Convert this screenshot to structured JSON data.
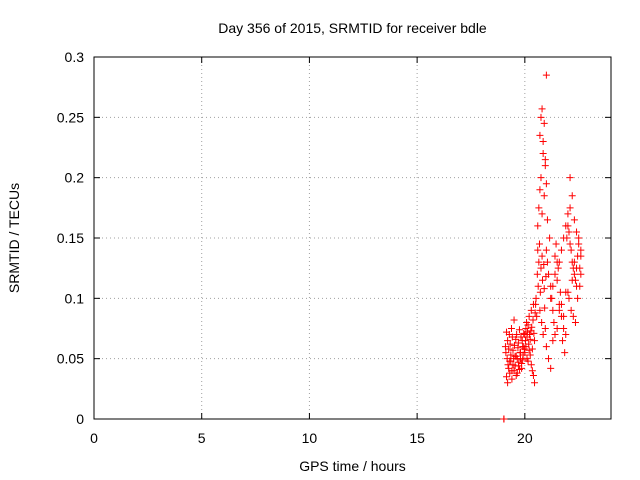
{
  "chart_data": {
    "type": "scatter",
    "title": "Day 356 of 2015, SRMTID for receiver bdle",
    "xlabel": "GPS time / hours",
    "ylabel": "SRMTID / TECUs",
    "xlim": [
      0,
      24
    ],
    "ylim": [
      0,
      0.3
    ],
    "xticks": [
      0,
      5,
      10,
      15,
      20
    ],
    "xtick_labels": [
      "0",
      "5",
      "10",
      "15",
      "20"
    ],
    "yticks": [
      0,
      0.05,
      0.1,
      0.15,
      0.2,
      0.25,
      0.3
    ],
    "ytick_labels": [
      "0",
      "0.05",
      "0.1",
      "0.15",
      "0.2",
      "0.25",
      "0.3"
    ],
    "grid": true,
    "marker": "+",
    "series": [
      {
        "name": "SRMTID",
        "color": "#ff0000",
        "x": [
          19.03,
          19.03,
          19.03,
          19.03,
          19.1,
          19.12,
          19.15,
          19.18,
          19.2,
          19.22,
          19.25,
          19.28,
          19.3,
          19.32,
          19.35,
          19.38,
          19.4,
          19.42,
          19.45,
          19.48,
          19.5,
          19.52,
          19.55,
          19.58,
          19.6,
          19.62,
          19.65,
          19.68,
          19.7,
          19.72,
          19.75,
          19.78,
          19.8,
          19.82,
          19.85,
          19.88,
          19.9,
          19.92,
          19.95,
          19.98,
          19.15,
          19.2,
          19.25,
          19.3,
          19.35,
          19.4,
          19.45,
          19.5,
          19.55,
          19.6,
          19.65,
          19.7,
          19.75,
          19.8,
          19.85,
          19.9,
          19.95,
          20.0,
          20.03,
          20.05,
          20.08,
          20.1,
          20.12,
          20.15,
          20.18,
          20.2,
          20.22,
          20.25,
          20.28,
          20.3,
          20.32,
          20.35,
          20.38,
          20.4,
          20.42,
          20.45,
          20.48,
          20.0,
          20.05,
          20.1,
          20.15,
          20.2,
          20.25,
          20.3,
          20.35,
          20.4,
          20.45,
          20.5,
          20.52,
          20.55,
          20.58,
          20.6,
          20.62,
          20.65,
          20.68,
          20.7,
          20.72,
          20.75,
          20.78,
          20.8,
          20.82,
          20.85,
          20.88,
          20.9,
          20.92,
          20.95,
          20.98,
          20.6,
          20.65,
          20.7,
          20.75,
          20.8,
          20.85,
          20.9,
          20.95,
          21.0,
          21.05,
          20.7,
          20.75,
          20.8,
          20.85,
          20.9,
          20.95,
          21.0,
          21.0,
          21.05,
          21.1,
          21.15,
          21.2,
          21.25,
          21.3,
          21.35,
          21.4,
          21.45,
          21.5,
          21.55,
          21.6,
          21.65,
          21.7,
          21.75,
          21.8,
          21.85,
          21.9,
          21.95,
          21.0,
          21.1,
          21.2,
          21.3,
          21.4,
          21.5,
          21.6,
          21.7,
          21.8,
          21.9,
          21.2,
          21.3,
          21.4,
          21.5,
          21.6,
          21.7,
          21.8,
          21.9,
          22.0,
          22.05,
          22.1,
          22.15,
          22.2,
          22.25,
          22.3,
          22.35,
          22.4,
          22.45,
          22.5,
          22.55,
          22.6,
          22.0,
          22.1,
          22.2,
          22.3,
          22.4,
          22.5,
          22.6,
          22.05,
          22.15,
          22.25,
          22.35,
          22.45,
          22.55,
          22.0,
          22.2,
          22.4,
          22.6,
          22.1,
          22.3
        ],
        "y": [
          0.0,
          0.0,
          0.0,
          0.0,
          0.06,
          0.055,
          0.072,
          0.05,
          0.065,
          0.045,
          0.058,
          0.07,
          0.048,
          0.062,
          0.053,
          0.075,
          0.04,
          0.068,
          0.057,
          0.05,
          0.082,
          0.061,
          0.044,
          0.066,
          0.052,
          0.07,
          0.038,
          0.059,
          0.063,
          0.047,
          0.074,
          0.055,
          0.05,
          0.068,
          0.042,
          0.065,
          0.06,
          0.053,
          0.071,
          0.058,
          0.035,
          0.03,
          0.042,
          0.038,
          0.048,
          0.033,
          0.045,
          0.04,
          0.052,
          0.036,
          0.05,
          0.044,
          0.041,
          0.055,
          0.046,
          0.049,
          0.06,
          0.07,
          0.065,
          0.075,
          0.08,
          0.068,
          0.072,
          0.078,
          0.062,
          0.085,
          0.07,
          0.066,
          0.073,
          0.09,
          0.076,
          0.058,
          0.082,
          0.095,
          0.071,
          0.065,
          0.088,
          0.055,
          0.06,
          0.05,
          0.048,
          0.057,
          0.053,
          0.045,
          0.04,
          0.036,
          0.03,
          0.095,
          0.1,
          0.085,
          0.12,
          0.14,
          0.11,
          0.13,
          0.145,
          0.09,
          0.105,
          0.125,
          0.08,
          0.135,
          0.115,
          0.07,
          0.128,
          0.108,
          0.092,
          0.075,
          0.118,
          0.16,
          0.175,
          0.19,
          0.2,
          0.17,
          0.22,
          0.185,
          0.21,
          0.195,
          0.165,
          0.235,
          0.25,
          0.257,
          0.23,
          0.245,
          0.215,
          0.285,
          0.14,
          0.13,
          0.12,
          0.15,
          0.11,
          0.1,
          0.09,
          0.08,
          0.135,
          0.145,
          0.115,
          0.125,
          0.095,
          0.105,
          0.085,
          0.065,
          0.075,
          0.055,
          0.07,
          0.15,
          0.06,
          0.05,
          0.042,
          0.065,
          0.07,
          0.075,
          0.13,
          0.14,
          0.15,
          0.16,
          0.1,
          0.11,
          0.12,
          0.13,
          0.09,
          0.095,
          0.085,
          0.105,
          0.16,
          0.155,
          0.145,
          0.14,
          0.13,
          0.125,
          0.12,
          0.115,
          0.11,
          0.135,
          0.15,
          0.125,
          0.14,
          0.17,
          0.175,
          0.185,
          0.165,
          0.155,
          0.145,
          0.12,
          0.1,
          0.09,
          0.085,
          0.08,
          0.1,
          0.11,
          0.105,
          0.115,
          0.125,
          0.135,
          0.2,
          0.13
        ]
      }
    ]
  }
}
